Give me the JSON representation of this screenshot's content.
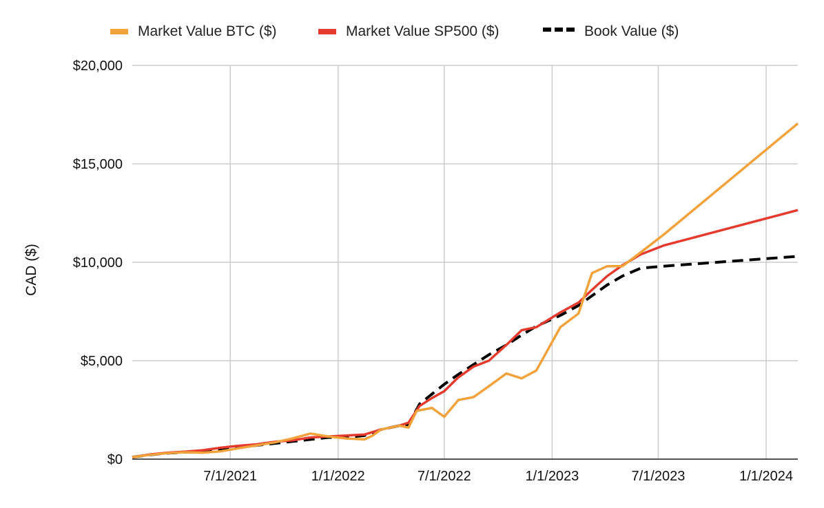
{
  "chart_data": {
    "type": "line",
    "ylabel": "CAD ($)",
    "xlabel": "",
    "ylim": [
      0,
      20000
    ],
    "xlim": [
      "2021-01-15",
      "2024-02-24"
    ],
    "y_ticks": [
      {
        "value": 0,
        "label": "$0"
      },
      {
        "value": 5000,
        "label": "$5,000"
      },
      {
        "value": 10000,
        "label": "$10,000"
      },
      {
        "value": 15000,
        "label": "$15,000"
      },
      {
        "value": 20000,
        "label": "$20,000"
      }
    ],
    "x_ticks": [
      {
        "date": "2021-07-01",
        "label": "7/1/2021"
      },
      {
        "date": "2022-01-01",
        "label": "1/1/2022"
      },
      {
        "date": "2022-07-01",
        "label": "7/1/2022"
      },
      {
        "date": "2023-01-01",
        "label": "1/1/2023"
      },
      {
        "date": "2023-07-01",
        "label": "7/1/2023"
      },
      {
        "date": "2024-01-01",
        "label": "1/1/2024"
      }
    ],
    "legend_position": "top",
    "grid": true,
    "series": [
      {
        "name": "Market Value BTC ($)",
        "color": "#F1A23B",
        "dash": false,
        "points": [
          [
            "2021-01-15",
            100
          ],
          [
            "2021-02-15",
            220
          ],
          [
            "2021-03-15",
            300
          ],
          [
            "2021-04-15",
            350
          ],
          [
            "2021-05-15",
            320
          ],
          [
            "2021-06-15",
            400
          ],
          [
            "2021-07-15",
            550
          ],
          [
            "2021-08-15",
            700
          ],
          [
            "2021-09-15",
            850
          ],
          [
            "2021-10-15",
            1050
          ],
          [
            "2021-11-15",
            1300
          ],
          [
            "2021-12-15",
            1150
          ],
          [
            "2022-01-15",
            1050
          ],
          [
            "2022-02-15",
            1000
          ],
          [
            "2022-03-01",
            1200
          ],
          [
            "2022-03-15",
            1500
          ],
          [
            "2022-04-15",
            1700
          ],
          [
            "2022-05-01",
            1600
          ],
          [
            "2022-05-15",
            2450
          ],
          [
            "2022-06-10",
            2600
          ],
          [
            "2022-07-01",
            2150
          ],
          [
            "2022-07-25",
            3000
          ],
          [
            "2022-08-20",
            3150
          ],
          [
            "2022-09-15",
            3700
          ],
          [
            "2022-10-15",
            4350
          ],
          [
            "2022-11-10",
            4100
          ],
          [
            "2022-12-05",
            4500
          ],
          [
            "2023-01-15",
            6700
          ],
          [
            "2023-02-15",
            7400
          ],
          [
            "2023-03-10",
            9450
          ],
          [
            "2023-04-05",
            9800
          ],
          [
            "2023-05-01",
            9800
          ],
          [
            "2023-06-01",
            10500
          ],
          [
            "2023-07-10",
            11400
          ],
          [
            "2024-02-24",
            17050
          ]
        ]
      },
      {
        "name": "Market Value SP500 ($)",
        "color": "#E53B2E",
        "dash": false,
        "points": [
          [
            "2021-01-15",
            100
          ],
          [
            "2021-02-15",
            240
          ],
          [
            "2021-03-15",
            320
          ],
          [
            "2021-04-15",
            380
          ],
          [
            "2021-05-15",
            450
          ],
          [
            "2021-06-15",
            580
          ],
          [
            "2021-07-15",
            680
          ],
          [
            "2021-08-15",
            750
          ],
          [
            "2021-09-15",
            880
          ],
          [
            "2021-10-15",
            950
          ],
          [
            "2021-11-15",
            1100
          ],
          [
            "2021-12-15",
            1150
          ],
          [
            "2022-01-15",
            1200
          ],
          [
            "2022-02-15",
            1250
          ],
          [
            "2022-03-15",
            1500
          ],
          [
            "2022-04-15",
            1700
          ],
          [
            "2022-05-01",
            1850
          ],
          [
            "2022-05-20",
            2700
          ],
          [
            "2022-06-10",
            3100
          ],
          [
            "2022-07-01",
            3450
          ],
          [
            "2022-07-25",
            4150
          ],
          [
            "2022-08-20",
            4700
          ],
          [
            "2022-09-15",
            5000
          ],
          [
            "2022-10-15",
            5800
          ],
          [
            "2022-11-10",
            6550
          ],
          [
            "2022-12-05",
            6700
          ],
          [
            "2023-01-15",
            7450
          ],
          [
            "2023-02-15",
            7950
          ],
          [
            "2023-03-10",
            8600
          ],
          [
            "2023-04-05",
            9300
          ],
          [
            "2023-05-01",
            9850
          ],
          [
            "2023-06-01",
            10400
          ],
          [
            "2023-07-10",
            10850
          ],
          [
            "2024-02-24",
            12650
          ]
        ]
      },
      {
        "name": "Book Value ($)",
        "color": "#000000",
        "dash": true,
        "points": [
          [
            "2021-01-15",
            100
          ],
          [
            "2021-02-15",
            220
          ],
          [
            "2021-03-15",
            300
          ],
          [
            "2021-04-15",
            350
          ],
          [
            "2021-05-15",
            420
          ],
          [
            "2021-06-15",
            500
          ],
          [
            "2021-07-15",
            600
          ],
          [
            "2021-08-15",
            700
          ],
          [
            "2021-09-15",
            800
          ],
          [
            "2021-10-15",
            900
          ],
          [
            "2021-11-15",
            1000
          ],
          [
            "2021-12-15",
            1100
          ],
          [
            "2022-01-15",
            1100
          ],
          [
            "2022-02-15",
            1200
          ],
          [
            "2022-03-15",
            1500
          ],
          [
            "2022-04-15",
            1700
          ],
          [
            "2022-05-01",
            1750
          ],
          [
            "2022-05-20",
            2800
          ],
          [
            "2022-06-10",
            3300
          ],
          [
            "2022-07-01",
            3800
          ],
          [
            "2022-07-25",
            4300
          ],
          [
            "2022-08-20",
            4800
          ],
          [
            "2022-09-15",
            5300
          ],
          [
            "2022-10-15",
            5800
          ],
          [
            "2022-11-10",
            6300
          ],
          [
            "2022-12-05",
            6750
          ],
          [
            "2023-01-15",
            7300
          ],
          [
            "2023-02-15",
            7800
          ],
          [
            "2023-03-10",
            8300
          ],
          [
            "2023-04-05",
            8850
          ],
          [
            "2023-05-01",
            9300
          ],
          [
            "2023-06-01",
            9700
          ],
          [
            "2023-07-10",
            9800
          ],
          [
            "2024-02-24",
            10300
          ]
        ]
      }
    ]
  }
}
